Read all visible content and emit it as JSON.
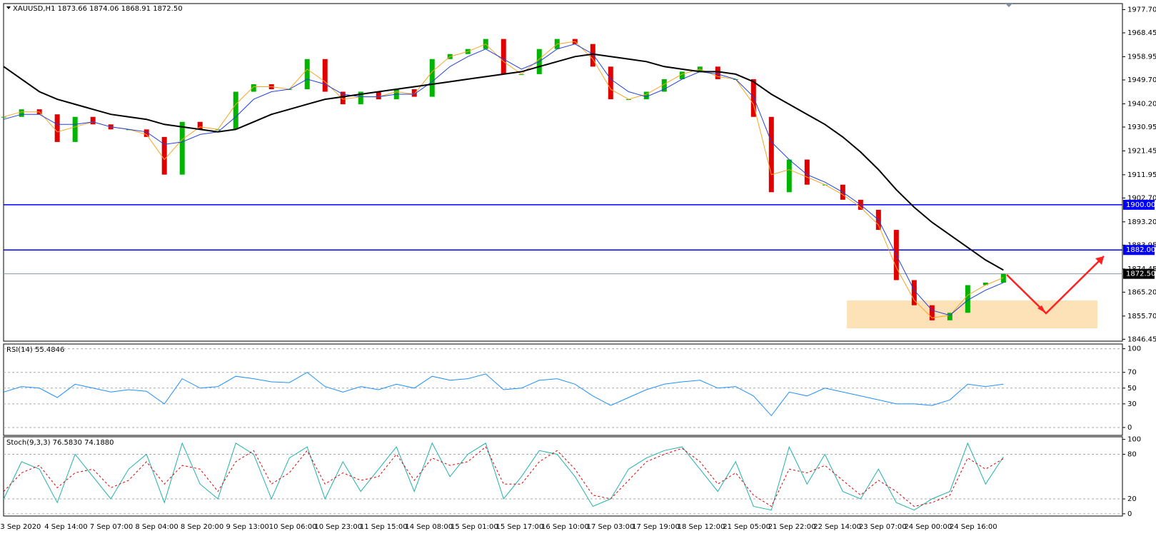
{
  "chart_data": [
    {
      "type": "candlestick",
      "title": "XAUUSD,H1  1873.66 1874.06 1868.91 1872.50",
      "ylim": [
        1845.7,
        1980.1
      ],
      "yticks": [
        {
          "value": 1977.7,
          "label": "1977.70"
        },
        {
          "value": 1968.45,
          "label": "1968.45"
        },
        {
          "value": 1958.95,
          "label": "1958.95"
        },
        {
          "value": 1949.7,
          "label": "1949.70"
        },
        {
          "value": 1940.2,
          "label": "1940.20"
        },
        {
          "value": 1930.95,
          "label": "1930.95"
        },
        {
          "value": 1921.45,
          "label": "1921.45"
        },
        {
          "value": 1911.95,
          "label": "1911.95"
        },
        {
          "value": 1902.7,
          "label": "1902.70"
        },
        {
          "value": 1893.2,
          "label": "1893.20"
        },
        {
          "value": 1883.95,
          "label": "1883.95"
        },
        {
          "value": 1874.45,
          "label": "1874.45"
        },
        {
          "value": 1865.2,
          "label": "1865.20"
        },
        {
          "value": 1855.7,
          "label": "1855.70"
        },
        {
          "value": 1846.45,
          "label": "1846.45"
        }
      ],
      "levels": [
        {
          "value": 1900,
          "label": "1900.00",
          "color": "#0000ff"
        },
        {
          "value": 1882,
          "label": "1882.00",
          "color": "#0000ff"
        }
      ],
      "last": {
        "value": 1872.5,
        "label": "1872.50",
        "color": "#000000"
      },
      "xtick_labels": [
        "3 Sep 2020",
        "4 Sep 14:00",
        "7 Sep 07:00",
        "8 Sep 04:00",
        "8 Sep 20:00",
        "9 Sep 13:00",
        "10 Sep 06:00",
        "10 Sep 23:00",
        "11 Sep 15:00",
        "14 Sep 08:00",
        "15 Sep 01:00",
        "15 Sep 17:00",
        "16 Sep 10:00",
        "17 Sep 03:00",
        "17 Sep 19:00",
        "18 Sep 12:00",
        "21 Sep 05:00",
        "21 Sep 22:00",
        "22 Sep 14:00",
        "23 Sep 07:00",
        "24 Sep 00:00",
        "24 Sep 16:00"
      ],
      "series": [
        {
          "up_color": "#00b400",
          "down_color": "#e00000",
          "values": [
            1935,
            1938,
            1936,
            1925,
            1935,
            1932,
            1930,
            1930,
            1927,
            1912,
            1933,
            1930,
            1930,
            1945,
            1948,
            1946,
            1946,
            1958,
            1945,
            1940,
            1945,
            1942,
            1946,
            1943,
            1958,
            1960,
            1962,
            1966,
            1952,
            1952,
            1962,
            1966,
            1964,
            1955,
            1942,
            1942,
            1945,
            1950,
            1953,
            1955,
            1950,
            1950,
            1935,
            1905,
            1918,
            1908,
            1908,
            1902,
            1898,
            1890,
            1870,
            1860,
            1854,
            1857,
            1868,
            1869,
            1872.5
          ]
        },
        {
          "color": "#f5a623",
          "values": [
            1935,
            1937,
            1937,
            1929,
            1931,
            1933,
            1931,
            1930,
            1928,
            1918,
            1926,
            1931,
            1930,
            1940,
            1947,
            1947,
            1946,
            1954,
            1949,
            1942,
            1943,
            1943,
            1945,
            1944,
            1953,
            1959,
            1961,
            1964,
            1957,
            1952,
            1958,
            1964,
            1965,
            1958,
            1946,
            1942,
            1944,
            1948,
            1952,
            1954,
            1951,
            1950,
            1940,
            1912,
            1914,
            1911,
            1908,
            1904,
            1899,
            1892,
            1875,
            1862,
            1855,
            1856,
            1864,
            1868,
            1871
          ]
        },
        {
          "color": "#2040e0",
          "values": [
            1934,
            1936,
            1936,
            1932,
            1932,
            1933,
            1931,
            1930,
            1929,
            1924,
            1925,
            1928,
            1929,
            1935,
            1942,
            1945,
            1946,
            1950,
            1948,
            1944,
            1943,
            1943,
            1944,
            1944,
            1949,
            1955,
            1959,
            1962,
            1958,
            1954,
            1957,
            1962,
            1964,
            1960,
            1950,
            1945,
            1943,
            1946,
            1950,
            1953,
            1952,
            1950,
            1943,
            1925,
            1918,
            1912,
            1909,
            1905,
            1900,
            1894,
            1880,
            1866,
            1858,
            1856,
            1862,
            1866,
            1869
          ]
        },
        {
          "color": "#000000",
          "width": 2,
          "values": [
            1955,
            1950,
            1945,
            1942,
            1940,
            1938,
            1936,
            1935,
            1934,
            1932,
            1931,
            1930,
            1929,
            1930,
            1933,
            1936,
            1938,
            1940,
            1942,
            1943,
            1944,
            1945,
            1946,
            1947,
            1948,
            1949,
            1950,
            1951,
            1952,
            1953,
            1955,
            1957,
            1959,
            1960,
            1959,
            1958,
            1957,
            1955,
            1954,
            1953,
            1953,
            1952,
            1949,
            1944,
            1940,
            1936,
            1932,
            1927,
            1921,
            1914,
            1906,
            1899,
            1893,
            1888,
            1883,
            1878,
            1874
          ]
        }
      ]
    },
    {
      "type": "line",
      "title": "RSI(14) 55.4846",
      "ylim": [
        -10,
        106
      ],
      "yticks": [
        0,
        30,
        50,
        70,
        100
      ],
      "series": [
        {
          "color": "#1e90ff",
          "values": [
            45,
            52,
            50,
            38,
            55,
            50,
            45,
            48,
            46,
            30,
            62,
            50,
            52,
            65,
            62,
            58,
            57,
            70,
            52,
            45,
            52,
            48,
            55,
            50,
            65,
            60,
            62,
            68,
            48,
            50,
            60,
            62,
            55,
            40,
            28,
            38,
            48,
            55,
            58,
            60,
            50,
            52,
            40,
            15,
            45,
            40,
            50,
            45,
            40,
            35,
            30,
            30,
            28,
            35,
            55,
            52,
            55
          ]
        }
      ]
    },
    {
      "type": "line",
      "title": "Stoch(9,3,3) 76.5830 74.1880",
      "ylim": [
        -3,
        103.5
      ],
      "yticks": [
        0,
        20,
        80,
        100
      ],
      "series": [
        {
          "color": "#20b2aa",
          "values": [
            20,
            70,
            60,
            15,
            80,
            50,
            20,
            60,
            80,
            15,
            95,
            40,
            20,
            95,
            80,
            20,
            75,
            90,
            20,
            70,
            30,
            60,
            90,
            30,
            95,
            50,
            80,
            95,
            20,
            50,
            85,
            80,
            50,
            10,
            20,
            60,
            75,
            85,
            90,
            60,
            30,
            70,
            10,
            5,
            90,
            40,
            80,
            30,
            20,
            60,
            15,
            5,
            20,
            30,
            95,
            40,
            76.583
          ]
        },
        {
          "color": "#e00000",
          "dashed": true,
          "values": [
            30,
            55,
            65,
            35,
            55,
            60,
            35,
            45,
            70,
            40,
            65,
            60,
            30,
            70,
            85,
            40,
            55,
            85,
            40,
            55,
            45,
            50,
            80,
            45,
            75,
            65,
            70,
            90,
            40,
            40,
            70,
            85,
            60,
            25,
            20,
            45,
            70,
            80,
            88,
            70,
            40,
            55,
            25,
            10,
            60,
            55,
            65,
            45,
            25,
            45,
            30,
            10,
            15,
            25,
            75,
            60,
            74.188
          ]
        }
      ]
    }
  ]
}
